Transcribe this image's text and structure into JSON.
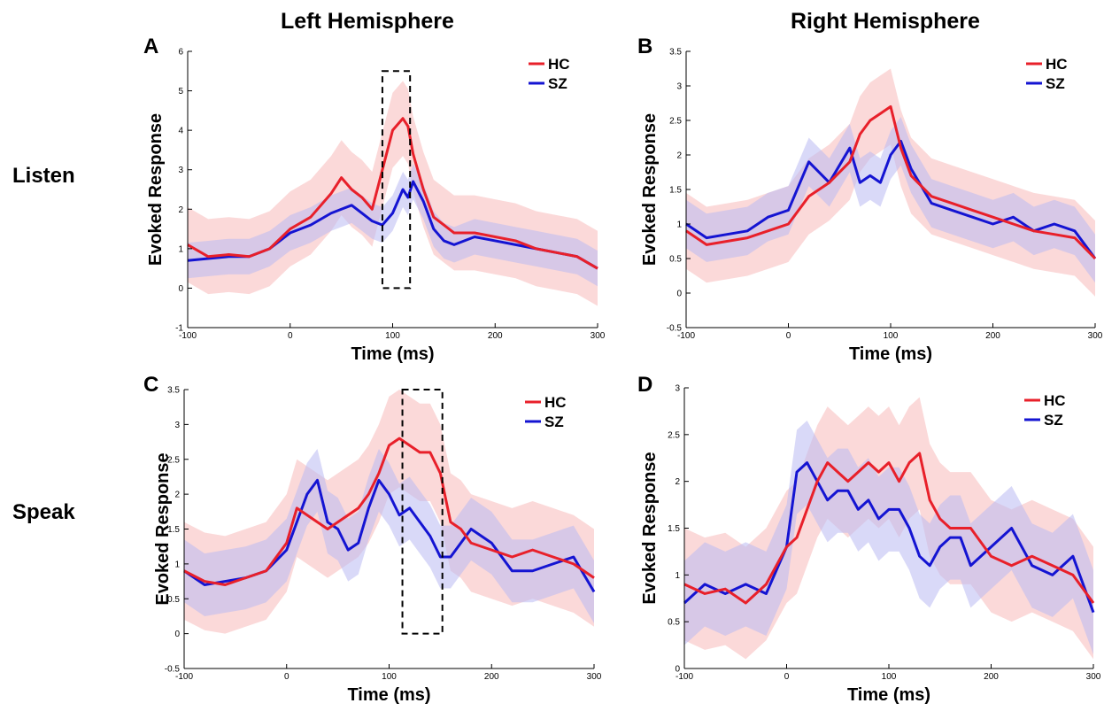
{
  "column_titles": [
    "Left Hemisphere",
    "Right Hemisphere"
  ],
  "row_labels": [
    "Listen",
    "Speak"
  ],
  "colors": {
    "HC": "#e8202a",
    "SZ": "#1414d2",
    "HC_band": "#f7b9b9",
    "SZ_band": "#b9b9f2"
  },
  "chart_data": [
    {
      "panel": "A",
      "type": "line",
      "xlabel": "Time (ms)",
      "ylabel": "Evoked Response",
      "xlim": [
        -100,
        300
      ],
      "ylim": [
        -1,
        6
      ],
      "xticks": [
        -100,
        0,
        100,
        200,
        300
      ],
      "yticks": [
        -1,
        0,
        1,
        2,
        3,
        4,
        5,
        6
      ],
      "legend": "top-right",
      "highlight_box": {
        "x": [
          90,
          117
        ],
        "y": [
          0,
          5.5
        ]
      },
      "x": [
        -100,
        -80,
        -60,
        -40,
        -20,
        0,
        20,
        40,
        50,
        60,
        70,
        80,
        90,
        100,
        110,
        115,
        120,
        130,
        140,
        150,
        160,
        180,
        200,
        220,
        240,
        260,
        280,
        300
      ],
      "series": [
        {
          "name": "HC",
          "values": [
            1.1,
            0.8,
            0.85,
            0.8,
            1.0,
            1.5,
            1.8,
            2.4,
            2.8,
            2.5,
            2.3,
            2.0,
            3.0,
            4.0,
            4.3,
            4.1,
            3.4,
            2.5,
            1.8,
            1.6,
            1.4,
            1.4,
            1.3,
            1.2,
            1.0,
            0.9,
            0.8,
            0.5
          ],
          "band_halfwidth": 0.95
        },
        {
          "name": "SZ",
          "values": [
            0.7,
            0.75,
            0.8,
            0.8,
            1.0,
            1.4,
            1.6,
            1.9,
            2.0,
            2.1,
            1.9,
            1.7,
            1.6,
            1.9,
            2.5,
            2.3,
            2.7,
            2.2,
            1.5,
            1.2,
            1.1,
            1.3,
            1.2,
            1.1,
            1.0,
            0.9,
            0.8,
            0.5
          ],
          "band_halfwidth": 0.45
        }
      ]
    },
    {
      "panel": "B",
      "type": "line",
      "xlabel": "Time (ms)",
      "ylabel": "Evoked Response",
      "xlim": [
        -100,
        300
      ],
      "ylim": [
        -0.5,
        3.5
      ],
      "xticks": [
        -100,
        0,
        100,
        200,
        300
      ],
      "yticks": [
        -0.5,
        0,
        0.5,
        1,
        1.5,
        2,
        2.5,
        3,
        3.5
      ],
      "legend": "top-right",
      "x": [
        -100,
        -80,
        -60,
        -40,
        -20,
        0,
        20,
        40,
        60,
        70,
        80,
        90,
        100,
        110,
        120,
        140,
        160,
        180,
        200,
        220,
        240,
        260,
        280,
        300
      ],
      "series": [
        {
          "name": "HC",
          "values": [
            0.9,
            0.7,
            0.75,
            0.8,
            0.9,
            1.0,
            1.4,
            1.6,
            1.9,
            2.3,
            2.5,
            2.6,
            2.7,
            2.1,
            1.7,
            1.4,
            1.3,
            1.2,
            1.1,
            1.0,
            0.9,
            0.85,
            0.8,
            0.5
          ],
          "band_halfwidth": 0.55
        },
        {
          "name": "SZ",
          "values": [
            1.0,
            0.8,
            0.85,
            0.9,
            1.1,
            1.2,
            1.9,
            1.6,
            2.1,
            1.6,
            1.7,
            1.6,
            2.0,
            2.2,
            1.8,
            1.3,
            1.2,
            1.1,
            1.0,
            1.1,
            0.9,
            1.0,
            0.9,
            0.5
          ],
          "band_halfwidth": 0.35
        }
      ]
    },
    {
      "panel": "C",
      "type": "line",
      "xlabel": "Time (ms)",
      "ylabel": "Evoked Response",
      "xlim": [
        -100,
        300
      ],
      "ylim": [
        -0.5,
        3.5
      ],
      "xticks": [
        -100,
        0,
        100,
        200,
        300
      ],
      "yticks": [
        -0.5,
        0,
        0.5,
        1,
        1.5,
        2,
        2.5,
        3,
        3.5
      ],
      "legend": "top-right",
      "highlight_box": {
        "x": [
          113,
          152
        ],
        "y": [
          0,
          3.5
        ]
      },
      "x": [
        -100,
        -80,
        -60,
        -40,
        -20,
        0,
        10,
        20,
        30,
        40,
        50,
        60,
        70,
        80,
        90,
        100,
        110,
        120,
        130,
        140,
        150,
        160,
        170,
        180,
        200,
        220,
        240,
        260,
        280,
        300
      ],
      "series": [
        {
          "name": "HC",
          "values": [
            0.9,
            0.75,
            0.7,
            0.8,
            0.9,
            1.3,
            1.8,
            1.7,
            1.6,
            1.5,
            1.6,
            1.7,
            1.8,
            2.0,
            2.3,
            2.7,
            2.8,
            2.7,
            2.6,
            2.6,
            2.3,
            1.6,
            1.5,
            1.3,
            1.2,
            1.1,
            1.2,
            1.1,
            1.0,
            0.8
          ],
          "band_halfwidth": 0.7
        },
        {
          "name": "SZ",
          "values": [
            0.9,
            0.7,
            0.75,
            0.8,
            0.9,
            1.2,
            1.6,
            2.0,
            2.2,
            1.6,
            1.5,
            1.2,
            1.3,
            1.8,
            2.2,
            2.0,
            1.7,
            1.8,
            1.6,
            1.4,
            1.1,
            1.1,
            1.3,
            1.5,
            1.3,
            0.9,
            0.9,
            1.0,
            1.1,
            0.6
          ],
          "band_halfwidth": 0.45
        }
      ]
    },
    {
      "panel": "D",
      "type": "line",
      "xlabel": "Time (ms)",
      "ylabel": "Evoked Response",
      "xlim": [
        -100,
        300
      ],
      "ylim": [
        0,
        3
      ],
      "xticks": [
        -100,
        0,
        100,
        200,
        300
      ],
      "yticks": [
        0,
        0.5,
        1,
        1.5,
        2,
        2.5,
        3
      ],
      "legend": "top-right",
      "x": [
        -100,
        -80,
        -60,
        -40,
        -20,
        0,
        10,
        20,
        30,
        40,
        50,
        60,
        70,
        80,
        90,
        100,
        110,
        120,
        130,
        140,
        150,
        160,
        170,
        180,
        200,
        220,
        240,
        260,
        280,
        300
      ],
      "series": [
        {
          "name": "HC",
          "values": [
            0.9,
            0.8,
            0.85,
            0.7,
            0.9,
            1.3,
            1.4,
            1.7,
            2.0,
            2.2,
            2.1,
            2.0,
            2.1,
            2.2,
            2.1,
            2.2,
            2.0,
            2.2,
            2.3,
            1.8,
            1.6,
            1.5,
            1.5,
            1.5,
            1.2,
            1.1,
            1.2,
            1.1,
            1.0,
            0.7
          ],
          "band_halfwidth": 0.6
        },
        {
          "name": "SZ",
          "values": [
            0.7,
            0.9,
            0.8,
            0.9,
            0.8,
            1.3,
            2.1,
            2.2,
            2.0,
            1.8,
            1.9,
            1.9,
            1.7,
            1.8,
            1.6,
            1.7,
            1.7,
            1.5,
            1.2,
            1.1,
            1.3,
            1.4,
            1.4,
            1.1,
            1.3,
            1.5,
            1.1,
            1.0,
            1.2,
            0.6
          ],
          "band_halfwidth": 0.45
        }
      ]
    }
  ]
}
